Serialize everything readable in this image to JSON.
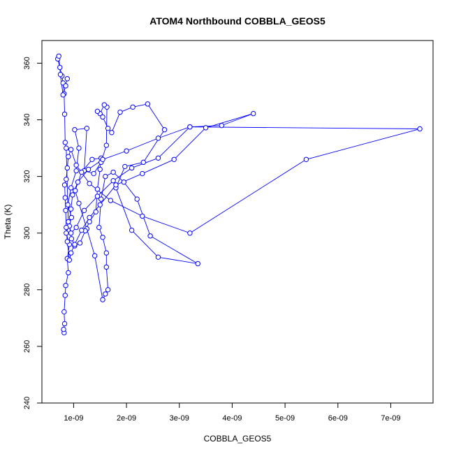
{
  "chart_data": {
    "type": "scatter",
    "title": "ATOM4 Northbound COBBLA_GEOS5",
    "xlabel": "COBBLA_GEOS5",
    "ylabel": "Theta (K)",
    "xlim": [
      4e-10,
      7.8e-09
    ],
    "ylim": [
      240,
      368
    ],
    "xticks": [
      {
        "value": 1e-09,
        "label": "1e-09"
      },
      {
        "value": 2e-09,
        "label": "2e-09"
      },
      {
        "value": 3e-09,
        "label": "3e-09"
      },
      {
        "value": 4e-09,
        "label": "4e-09"
      },
      {
        "value": 5e-09,
        "label": "5e-09"
      },
      {
        "value": 6e-09,
        "label": "6e-09"
      },
      {
        "value": 7e-09,
        "label": "7e-09"
      }
    ],
    "yticks": [
      {
        "value": 240,
        "label": "240"
      },
      {
        "value": 260,
        "label": "260"
      },
      {
        "value": 280,
        "label": "280"
      },
      {
        "value": 300,
        "label": "300"
      },
      {
        "value": 320,
        "label": "320"
      },
      {
        "value": 340,
        "label": "340"
      },
      {
        "value": 360,
        "label": "360"
      }
    ],
    "grid": false,
    "legend": "none",
    "series_color": "#0000ff",
    "series": [
      {
        "x": [
          8.2e-10,
          8.1e-10,
          8.3e-10,
          8.2e-10,
          8.4e-10,
          8.5e-10,
          9e-10,
          8.8e-10,
          9.2e-10,
          8.6e-10,
          9.6e-10,
          8.9e-10,
          9.5e-10,
          1.05e-09,
          1.1e-09,
          1.02e-09,
          1.25e-09,
          1.2e-09,
          1.38e-09,
          1.52e-09,
          1.62e-09,
          1.63e-09,
          1.58e-09,
          1.5e-09,
          1.45e-09,
          1.55e-09,
          1.65e-09,
          1.72e-09,
          1.88e-09,
          2.12e-09,
          2.4e-09,
          2.72e-09,
          2.32e-09,
          1.97e-09,
          1.8e-09,
          2.1e-09,
          2.6e-09,
          3.35e-09,
          2.45e-09,
          2.2e-09,
          1.95e-09,
          1.75e-09,
          1.6e-09,
          1.52e-09,
          1.48e-09,
          1.55e-09,
          1.62e-09,
          1.62e-09,
          1.65e-09,
          1.6e-09,
          1.55e-09,
          1.4e-09,
          1.25e-09,
          1.1e-09,
          1.03e-09,
          1.15e-09,
          1.35e-09,
          1.52e-09,
          1.5e-09,
          1.45e-09,
          1.42e-09,
          1.3e-09,
          1.22e-09,
          1.12e-09,
          1.02e-09,
          9.6e-10,
          9.2e-10,
          9.5e-10,
          9.8e-10,
          1.08e-09,
          1.28e-09,
          1.55e-09,
          2e-09,
          2.6e-09,
          3.2e-09,
          3.8e-09,
          4.4e-09,
          3.5e-09,
          2.9e-09,
          2.3e-09,
          1.8e-09,
          1.5e-09,
          1.3e-09,
          1.15e-09,
          1.02e-09,
          9.5e-10,
          9.2e-10,
          8.8e-10,
          8.6e-10,
          8.5e-10,
          8.4e-10,
          8.3e-10,
          8.6e-10,
          8.8e-10,
          9e-10,
          9.5e-10,
          1.05e-09,
          1.3e-09,
          1.7e-09,
          2.3e-09,
          3.2e-09,
          5.4e-09,
          7.55e-09,
          3.2e-09,
          2.6e-09,
          2.1e-09,
          1.75e-09,
          1.45e-09,
          1.2e-09,
          1.05e-09,
          9.5e-10,
          9e-10,
          8.6e-10,
          8.4e-10,
          8.3e-10,
          8.2e-10,
          8e-10,
          7.8e-10,
          7.4e-10,
          7e-10,
          7.2e-10,
          7.5e-10,
          8e-10,
          8.5e-10,
          8.8e-10
        ],
        "y": [
          264.8,
          266.0,
          268.0,
          272.2,
          278.0,
          281.5,
          286.0,
          291.0,
          296.0,
          300.0,
          305.5,
          310.0,
          316.0,
          322.0,
          330.0,
          336.5,
          337.0,
          322.0,
          321.0,
          325.0,
          331.0,
          344.5,
          345.3,
          342.2,
          343.0,
          341.0,
          337.0,
          335.5,
          342.7,
          344.5,
          345.6,
          336.5,
          325.0,
          323.5,
          316.0,
          301.0,
          291.5,
          289.2,
          299.0,
          312.0,
          318.0,
          321.5,
          320.0,
          312.0,
          302.0,
          298.5,
          293.0,
          288.0,
          280.0,
          278.5,
          276.5,
          292.0,
          301.5,
          310.5,
          315.0,
          321.5,
          326.0,
          326.5,
          322.5,
          315.5,
          307.5,
          304.0,
          300.8,
          296.5,
          295.5,
          298.0,
          302.5,
          308.5,
          313.5,
          318.0,
          322.5,
          326.0,
          329.0,
          333.5,
          337.5,
          338.0,
          342.2,
          337.2,
          326.0,
          321.0,
          317.0,
          310.0,
          305.5,
          301.0,
          296.0,
          293.0,
          290.5,
          297.0,
          302.0,
          308.0,
          312.5,
          317.0,
          319.0,
          323.0,
          327.0,
          329.5,
          324.0,
          317.5,
          311.5,
          306.0,
          300.0,
          326.0,
          336.8,
          337.5,
          326.5,
          323.0,
          318.5,
          313.0,
          308.0,
          302.0,
          300.0,
          304.0,
          330.0,
          332.0,
          342.0,
          349.2,
          353.0,
          355.5,
          358.5,
          361.5,
          362.5,
          356.0,
          348.8,
          352.0,
          354.5
        ]
      }
    ]
  }
}
